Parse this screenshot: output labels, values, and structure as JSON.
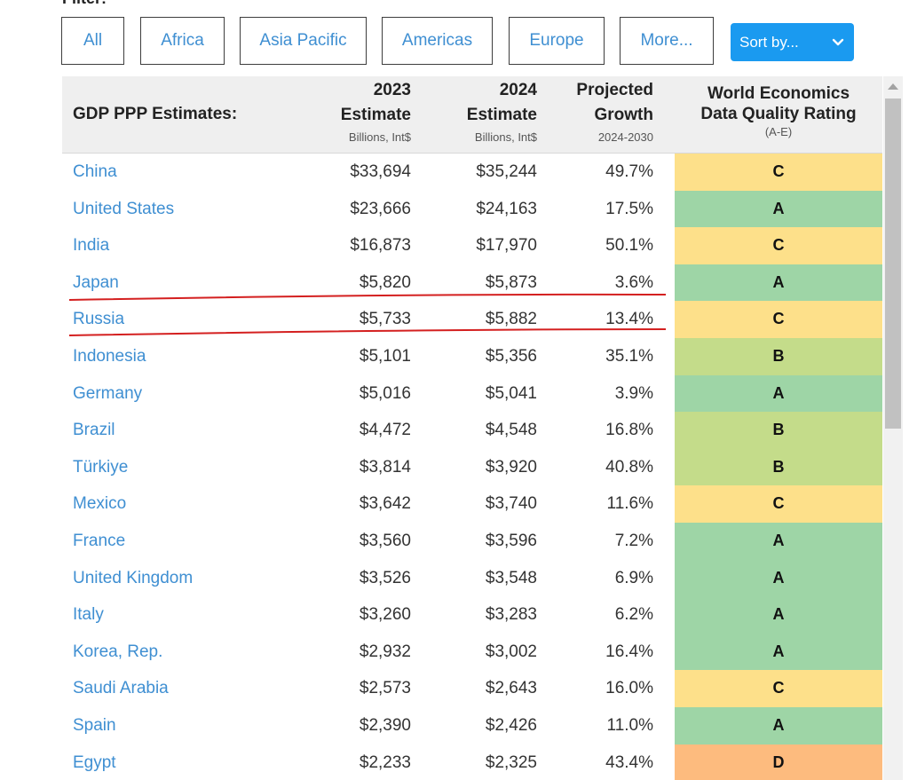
{
  "filter": {
    "label": "Filter:",
    "buttons": [
      "All",
      "Africa",
      "Asia Pacific",
      "Americas",
      "Europe",
      "More..."
    ],
    "sort_label": "Sort by..."
  },
  "table": {
    "headers": {
      "title": "GDP PPP Estimates:",
      "col2023_line1": "2023",
      "col2023_line2": "Estimate",
      "col2023_sub": "Billions, Int$",
      "col2024_line1": "2024",
      "col2024_line2": "Estimate",
      "col2024_sub": "Billions, Int$",
      "growth_line1": "Projected",
      "growth_line2": "Growth",
      "growth_sub": "2024-2030",
      "rating_line1": "World Economics",
      "rating_line2": "Data Quality Rating",
      "rating_sub": "(A-E)"
    },
    "rows": [
      {
        "country": "China",
        "gdp2023": "$33,694",
        "gdp2024": "$35,244",
        "growth": "49.7%",
        "rating": "C"
      },
      {
        "country": "United States",
        "gdp2023": "$23,666",
        "gdp2024": "$24,163",
        "growth": "17.5%",
        "rating": "A"
      },
      {
        "country": "India",
        "gdp2023": "$16,873",
        "gdp2024": "$17,970",
        "growth": "50.1%",
        "rating": "C"
      },
      {
        "country": "Japan",
        "gdp2023": "$5,820",
        "gdp2024": "$5,873",
        "growth": "3.6%",
        "rating": "A"
      },
      {
        "country": "Russia",
        "gdp2023": "$5,733",
        "gdp2024": "$5,882",
        "growth": "13.4%",
        "rating": "C"
      },
      {
        "country": "Indonesia",
        "gdp2023": "$5,101",
        "gdp2024": "$5,356",
        "growth": "35.1%",
        "rating": "B"
      },
      {
        "country": "Germany",
        "gdp2023": "$5,016",
        "gdp2024": "$5,041",
        "growth": "3.9%",
        "rating": "A"
      },
      {
        "country": "Brazil",
        "gdp2023": "$4,472",
        "gdp2024": "$4,548",
        "growth": "16.8%",
        "rating": "B"
      },
      {
        "country": "Türkiye",
        "gdp2023": "$3,814",
        "gdp2024": "$3,920",
        "growth": "40.8%",
        "rating": "B"
      },
      {
        "country": "Mexico",
        "gdp2023": "$3,642",
        "gdp2024": "$3,740",
        "growth": "11.6%",
        "rating": "C"
      },
      {
        "country": "France",
        "gdp2023": "$3,560",
        "gdp2024": "$3,596",
        "growth": "7.2%",
        "rating": "A"
      },
      {
        "country": "United Kingdom",
        "gdp2023": "$3,526",
        "gdp2024": "$3,548",
        "growth": "6.9%",
        "rating": "A"
      },
      {
        "country": "Italy",
        "gdp2023": "$3,260",
        "gdp2024": "$3,283",
        "growth": "6.2%",
        "rating": "A"
      },
      {
        "country": "Korea, Rep.",
        "gdp2023": "$2,932",
        "gdp2024": "$3,002",
        "growth": "16.4%",
        "rating": "A"
      },
      {
        "country": "Saudi Arabia",
        "gdp2023": "$2,573",
        "gdp2024": "$2,643",
        "growth": "16.0%",
        "rating": "C"
      },
      {
        "country": "Spain",
        "gdp2023": "$2,390",
        "gdp2024": "$2,426",
        "growth": "11.0%",
        "rating": "A"
      },
      {
        "country": "Egypt",
        "gdp2023": "$2,233",
        "gdp2024": "$2,325",
        "growth": "43.4%",
        "rating": "D"
      }
    ]
  },
  "rating_colors": {
    "A": "#9ed5a6",
    "B": "#c4dc8a",
    "C": "#fde08a",
    "D": "#fdbb7e"
  },
  "colors": {
    "link": "#3f8fd2",
    "sort_button": "#1a9af0",
    "annotation": "#d42020"
  },
  "icons": {
    "sort_chevron": "chevron-down-icon",
    "scroll_up": "scroll-up-arrow-icon"
  }
}
